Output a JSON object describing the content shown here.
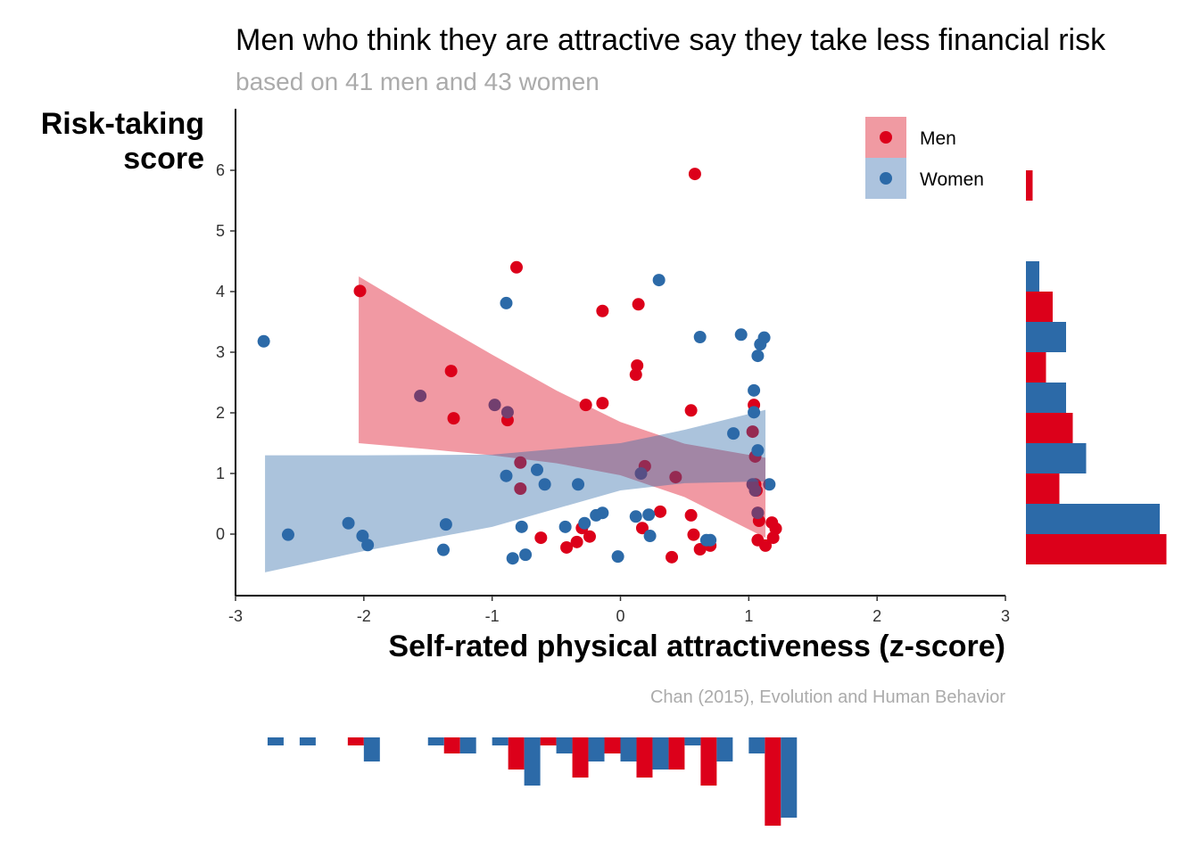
{
  "chart_data": {
    "type": "scatter",
    "title": "Men who think they are attractive say they take less financial risk",
    "subtitle": "based on 41 men and 43 women",
    "xlabel": "Self-rated physical attractiveness (z-score)",
    "ylabel": "Risk-taking score",
    "ylabel_lines": [
      "Risk-taking",
      "score"
    ],
    "caption": "Chan (2015), Evolution and Human Behavior",
    "xlim": [
      -3,
      3
    ],
    "ylim": [
      -1.02,
      7.0
    ],
    "xticks": [
      -3,
      -2,
      -1,
      0,
      1,
      2,
      3
    ],
    "xtick_labels": [
      "-3",
      "-2",
      "-1",
      "0",
      "1",
      "2",
      "3"
    ],
    "yticks": [
      0,
      1,
      2,
      3,
      4,
      5,
      6
    ],
    "ytick_labels": [
      "0",
      "1",
      "2",
      "3",
      "4",
      "5",
      "6"
    ],
    "legend": {
      "position": "top-right",
      "entries": [
        "Men",
        "Women"
      ]
    },
    "colors": {
      "Men": "#DC001A",
      "Women": "#2C6AA8"
    },
    "series": [
      {
        "name": "Men",
        "points": [
          [
            0.58,
            5.94
          ],
          [
            -0.81,
            4.4
          ],
          [
            -2.03,
            4.01
          ],
          [
            0.14,
            3.79
          ],
          [
            -0.14,
            3.68
          ],
          [
            0.13,
            2.78
          ],
          [
            0.12,
            2.63
          ],
          [
            -1.32,
            2.69
          ],
          [
            -1.3,
            1.91
          ],
          [
            -0.88,
            1.88
          ],
          [
            -0.27,
            2.13
          ],
          [
            -0.14,
            2.16
          ],
          [
            0.55,
            2.04
          ],
          [
            1.04,
            2.13
          ],
          [
            1.03,
            1.69
          ],
          [
            1.05,
            1.28
          ],
          [
            -0.78,
            1.18
          ],
          [
            0.19,
            1.12
          ],
          [
            0.43,
            0.94
          ],
          [
            -0.78,
            0.75
          ],
          [
            1.06,
            0.72
          ],
          [
            0.31,
            0.37
          ],
          [
            0.55,
            0.31
          ],
          [
            1.07,
            0.35
          ],
          [
            1.08,
            0.22
          ],
          [
            1.18,
            0.19
          ],
          [
            1.21,
            0.09
          ],
          [
            0.17,
            0.1
          ],
          [
            0.57,
            -0.01
          ],
          [
            -0.62,
            -0.06
          ],
          [
            -0.24,
            -0.04
          ],
          [
            -0.34,
            -0.13
          ],
          [
            -0.42,
            -0.22
          ],
          [
            -0.3,
            0.1
          ],
          [
            1.19,
            -0.06
          ],
          [
            1.07,
            -0.1
          ],
          [
            1.13,
            -0.19
          ],
          [
            0.7,
            -0.19
          ],
          [
            0.62,
            -0.25
          ],
          [
            0.4,
            -0.38
          ],
          [
            1.05,
            0.82
          ]
        ],
        "fit_band": {
          "x": [
            -2.04,
            -1.5,
            -1,
            -0.5,
            0,
            0.5,
            1.13
          ],
          "upper": [
            4.25,
            3.57,
            2.96,
            2.37,
            1.85,
            1.49,
            1.26
          ],
          "lower": [
            1.5,
            1.4,
            1.3,
            1.17,
            0.97,
            0.61,
            -0.06
          ]
        },
        "y_hist": {
          "bins": [
            0,
            1,
            2,
            3,
            4,
            5,
            6
          ],
          "counts": [
            21,
            5,
            7,
            3,
            4,
            0,
            1
          ]
        },
        "x_hist_counts": [
          0,
          0,
          0,
          1,
          0,
          0,
          2,
          0,
          4,
          1,
          5,
          2,
          5,
          4,
          6,
          0,
          11
        ]
      },
      {
        "name": "Women",
        "points": [
          [
            -2.78,
            3.18
          ],
          [
            -2.59,
            -0.01
          ],
          [
            -2.12,
            0.18
          ],
          [
            -2.01,
            -0.03
          ],
          [
            -1.97,
            -0.18
          ],
          [
            -1.56,
            2.28
          ],
          [
            -1.36,
            0.16
          ],
          [
            -1.38,
            -0.26
          ],
          [
            -0.89,
            3.81
          ],
          [
            -0.98,
            2.13
          ],
          [
            -0.88,
            2.01
          ],
          [
            -0.89,
            0.96
          ],
          [
            -0.65,
            1.06
          ],
          [
            -0.59,
            0.82
          ],
          [
            -0.77,
            0.12
          ],
          [
            -0.84,
            -0.4
          ],
          [
            -0.74,
            -0.34
          ],
          [
            -0.43,
            0.12
          ],
          [
            -0.33,
            0.82
          ],
          [
            -0.28,
            0.18
          ],
          [
            -0.19,
            0.31
          ],
          [
            -0.14,
            0.35
          ],
          [
            -0.02,
            -0.37
          ],
          [
            0.12,
            0.29
          ],
          [
            0.22,
            0.32
          ],
          [
            0.23,
            -0.03
          ],
          [
            0.16,
            1.0
          ],
          [
            0.3,
            4.19
          ],
          [
            0.62,
            3.25
          ],
          [
            0.94,
            3.29
          ],
          [
            1.09,
            3.13
          ],
          [
            1.12,
            3.24
          ],
          [
            1.07,
            2.94
          ],
          [
            1.04,
            2.37
          ],
          [
            1.04,
            2.01
          ],
          [
            0.88,
            1.66
          ],
          [
            1.07,
            1.38
          ],
          [
            1.03,
            0.82
          ],
          [
            1.16,
            0.82
          ],
          [
            1.05,
            0.72
          ],
          [
            0.67,
            -0.1
          ],
          [
            0.7,
            -0.1
          ],
          [
            1.07,
            0.35
          ]
        ],
        "fit_band": {
          "x": [
            -2.77,
            -2,
            -1,
            0,
            0.5,
            1.13
          ],
          "upper": [
            1.3,
            1.3,
            1.31,
            1.5,
            1.72,
            2.05
          ],
          "lower": [
            -0.63,
            -0.28,
            0.12,
            0.72,
            0.84,
            0.87
          ]
        },
        "y_hist": {
          "bins": [
            0,
            1,
            2,
            3,
            4,
            5,
            6
          ],
          "counts": [
            20,
            9,
            6,
            6,
            2,
            0,
            0
          ]
        },
        "x_hist_counts": [
          1,
          1,
          0,
          3,
          0,
          1,
          2,
          1,
          6,
          2,
          3,
          3,
          4,
          1,
          3,
          2,
          10
        ]
      }
    ],
    "x_hist_bin_centers": [
      -2.75,
      -2.5,
      -2.25,
      -2,
      -1.75,
      -1.5,
      -1.25,
      -1,
      -0.75,
      -0.5,
      -0.25,
      0,
      0.25,
      0.5,
      0.75,
      1,
      1.25
    ],
    "x_hist_bin_width": 0.25,
    "y_hist_bin_width": 1
  }
}
